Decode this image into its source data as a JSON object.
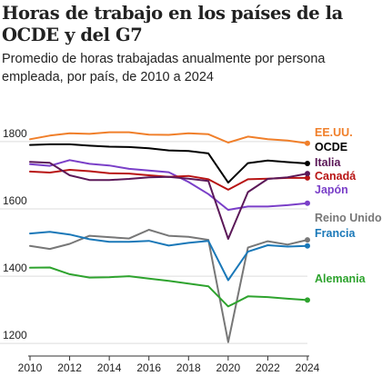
{
  "chart_data": {
    "type": "line",
    "title": "Horas de trabajo en los países de la OCDE y del G7",
    "subtitle": "Promedio de horas trabajadas anualmente por persona empleada, por país, de 2010 a 2024",
    "x": [
      2010,
      2011,
      2012,
      2013,
      2014,
      2015,
      2016,
      2017,
      2018,
      2019,
      2020,
      2021,
      2022,
      2023,
      2024
    ],
    "xticks": [
      "2010",
      "2012",
      "2014",
      "2016",
      "2018",
      "2020",
      "2022",
      "2024"
    ],
    "yticks": [
      "1200",
      "1400",
      "1600",
      "1800"
    ],
    "xlim": [
      2010,
      2024
    ],
    "ylim": [
      1160,
      1870
    ],
    "grid": true,
    "legend": "direct labels at line ends (right)",
    "series": [
      {
        "name": "EE.UU.",
        "color": "#f07f2a",
        "values": [
          1807,
          1818,
          1825,
          1823,
          1828,
          1828,
          1821,
          1820,
          1825,
          1822,
          1797,
          1815,
          1807,
          1803,
          1795
        ]
      },
      {
        "name": "OCDE",
        "color": "#000000",
        "values": [
          1790,
          1792,
          1792,
          1788,
          1785,
          1784,
          1780,
          1774,
          1772,
          1765,
          1678,
          1736,
          1744,
          1739,
          1735
        ]
      },
      {
        "name": "Italia",
        "color": "#5b1858",
        "values": [
          1740,
          1737,
          1700,
          1686,
          1686,
          1689,
          1694,
          1695,
          1690,
          1683,
          1511,
          1650,
          1689,
          1694,
          1705
        ]
      },
      {
        "name": "Canadá",
        "color": "#b81414",
        "values": [
          1711,
          1708,
          1716,
          1712,
          1706,
          1705,
          1700,
          1695,
          1698,
          1688,
          1657,
          1688,
          1690,
          1692,
          1692
        ]
      },
      {
        "name": "Japón",
        "color": "#7a3fc8",
        "values": [
          1733,
          1728,
          1745,
          1734,
          1729,
          1719,
          1714,
          1709,
          1680,
          1644,
          1597,
          1607,
          1607,
          1611,
          1617
        ]
      },
      {
        "name": "Reino Unido",
        "color": "#777777",
        "values": [
          1490,
          1481,
          1496,
          1520,
          1516,
          1512,
          1538,
          1520,
          1517,
          1508,
          1204,
          1485,
          1504,
          1494,
          1508
        ]
      },
      {
        "name": "Francia",
        "color": "#1a78b8",
        "values": [
          1527,
          1532,
          1524,
          1510,
          1502,
          1502,
          1505,
          1491,
          1499,
          1505,
          1388,
          1473,
          1492,
          1488,
          1490
        ]
      },
      {
        "name": "Alemania",
        "color": "#2ea32e",
        "values": [
          1425,
          1426,
          1406,
          1396,
          1397,
          1400,
          1393,
          1386,
          1378,
          1370,
          1310,
          1340,
          1338,
          1333,
          1329
        ]
      }
    ]
  }
}
